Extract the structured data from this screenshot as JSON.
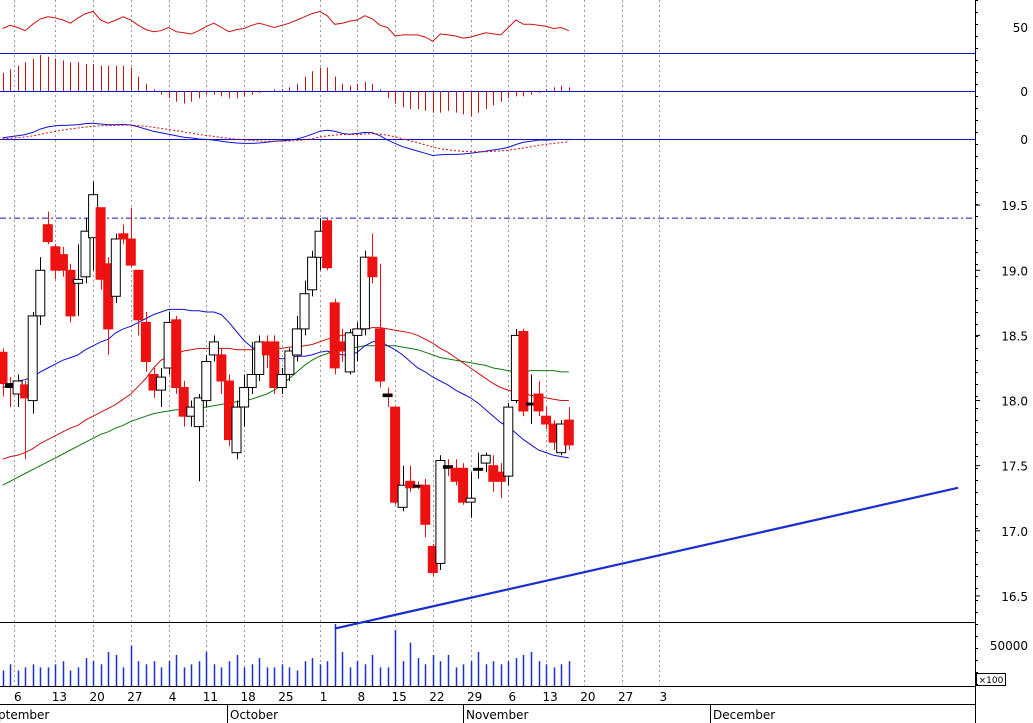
{
  "chart_data": {
    "type": "candlestick",
    "colors": {
      "up": "#ffffff",
      "down": "#ee1111",
      "ma_fast": "#1111cc",
      "ma_mid": "#cc1111",
      "ma_slow": "#117711",
      "trend": "#1a2fcc",
      "volume": "#1a2fcc",
      "rsi": "#cc1111",
      "macd_hist": "#cc1111",
      "grid": "#999999",
      "frame": "#000000"
    },
    "price_axis": {
      "ticks": [
        "19.5",
        "19.0",
        "18.5",
        "18.0",
        "17.5",
        "17.0",
        "16.5"
      ],
      "range": [
        16.3,
        20.0
      ]
    },
    "indicator_labels": {
      "rsi": "50",
      "macd_hist": "0",
      "macd": "0"
    },
    "volume_axis": {
      "tick": "50000",
      "unit": "×100"
    },
    "x_tick_labels": [
      "6",
      "13",
      "20",
      "27",
      "4",
      "11",
      "18",
      "25",
      "1",
      "8",
      "15",
      "22",
      "29",
      "6",
      "13",
      "20",
      "27",
      "3"
    ],
    "month_labels": [
      "ptember",
      "October",
      "November",
      "December"
    ],
    "resistance_line": 19.4,
    "trend_line": {
      "start": {
        "date": "Nov 5",
        "value": 16.25
      },
      "end": {
        "date": "Dec 27",
        "value": 17.33
      }
    },
    "candles": [
      {
        "date": "Sep 4",
        "open": 18.37,
        "high": 18.4,
        "low": 18.03,
        "close": 18.13
      },
      {
        "date": "Sep 5",
        "open": 18.13,
        "high": 18.18,
        "low": 17.95,
        "close": 18.1
      },
      {
        "date": "Sep 6",
        "open": 18.05,
        "high": 18.2,
        "low": 17.95,
        "close": 18.15
      },
      {
        "date": "Sep 9",
        "open": 18.12,
        "high": 18.15,
        "low": 17.55,
        "close": 18.02
      },
      {
        "date": "Sep 10",
        "open": 18.0,
        "high": 18.68,
        "low": 17.9,
        "close": 18.65
      },
      {
        "date": "Sep 11",
        "open": 18.65,
        "high": 19.1,
        "low": 18.58,
        "close": 19.0
      },
      {
        "date": "Sep 12",
        "open": 19.35,
        "high": 19.45,
        "low": 19.2,
        "close": 19.22
      },
      {
        "date": "Sep 13",
        "open": 19.18,
        "high": 19.2,
        "low": 18.93,
        "close": 19.0
      },
      {
        "date": "Sep 16",
        "open": 19.12,
        "high": 19.18,
        "low": 18.95,
        "close": 19.0
      },
      {
        "date": "Sep 17",
        "open": 19.0,
        "high": 19.05,
        "low": 18.6,
        "close": 18.65
      },
      {
        "date": "Sep 18",
        "open": 18.9,
        "high": 19.2,
        "low": 18.65,
        "close": 18.93
      },
      {
        "date": "Sep 19",
        "open": 18.95,
        "high": 19.4,
        "low": 18.9,
        "close": 19.3
      },
      {
        "date": "Sep 20",
        "open": 19.25,
        "high": 19.68,
        "low": 19.0,
        "close": 19.58
      },
      {
        "date": "Sep 23",
        "open": 19.48,
        "high": 19.48,
        "low": 18.85,
        "close": 18.93
      },
      {
        "date": "Sep 24",
        "open": 19.05,
        "high": 19.1,
        "low": 18.35,
        "close": 18.55
      },
      {
        "date": "Sep 25",
        "open": 18.8,
        "high": 19.28,
        "low": 18.75,
        "close": 19.24
      },
      {
        "date": "Sep 26",
        "open": 19.28,
        "high": 19.35,
        "low": 19.2,
        "close": 19.24
      },
      {
        "date": "Sep 27",
        "open": 19.24,
        "high": 19.48,
        "low": 19.02,
        "close": 19.04
      },
      {
        "date": "Sep 30",
        "open": 19.0,
        "high": 19.0,
        "low": 18.5,
        "close": 18.62
      },
      {
        "date": "Oct 1",
        "open": 18.6,
        "high": 18.68,
        "low": 18.22,
        "close": 18.3
      },
      {
        "date": "Oct 2",
        "open": 18.2,
        "high": 18.25,
        "low": 18.02,
        "close": 18.08
      },
      {
        "date": "Oct 3",
        "open": 18.08,
        "high": 18.25,
        "low": 17.95,
        "close": 18.18
      },
      {
        "date": "Oct 4",
        "open": 18.25,
        "high": 18.68,
        "low": 18.2,
        "close": 18.6
      },
      {
        "date": "Oct 7",
        "open": 18.62,
        "high": 18.65,
        "low": 18.05,
        "close": 18.1
      },
      {
        "date": "Oct 8",
        "open": 18.1,
        "high": 18.15,
        "low": 17.8,
        "close": 17.88
      },
      {
        "date": "Oct 9",
        "open": 17.88,
        "high": 18.0,
        "low": 17.8,
        "close": 17.95
      },
      {
        "date": "Oct 10",
        "open": 17.8,
        "high": 18.05,
        "low": 17.38,
        "close": 18.02
      },
      {
        "date": "Oct 11",
        "open": 18.0,
        "high": 18.35,
        "low": 17.95,
        "close": 18.3
      },
      {
        "date": "Oct 14",
        "open": 18.35,
        "high": 18.5,
        "low": 18.3,
        "close": 18.45
      },
      {
        "date": "Oct 15",
        "open": 18.35,
        "high": 18.4,
        "low": 18.05,
        "close": 18.15
      },
      {
        "date": "Oct 16",
        "open": 18.15,
        "high": 18.2,
        "low": 17.65,
        "close": 17.7
      },
      {
        "date": "Oct 17",
        "open": 17.6,
        "high": 18.0,
        "low": 17.55,
        "close": 17.95
      },
      {
        "date": "Oct 18",
        "open": 17.95,
        "high": 18.2,
        "low": 17.8,
        "close": 18.1
      },
      {
        "date": "Oct 21",
        "open": 18.1,
        "high": 18.45,
        "low": 18.05,
        "close": 18.2
      },
      {
        "date": "Oct 22",
        "open": 18.2,
        "high": 18.5,
        "low": 18.15,
        "close": 18.45
      },
      {
        "date": "Oct 23",
        "open": 18.45,
        "high": 18.5,
        "low": 18.25,
        "close": 18.35
      },
      {
        "date": "Oct 24",
        "open": 18.45,
        "high": 18.5,
        "low": 18.05,
        "close": 18.1
      },
      {
        "date": "Oct 25",
        "open": 18.1,
        "high": 18.25,
        "low": 18.05,
        "close": 18.2
      },
      {
        "date": "Oct 28",
        "open": 18.2,
        "high": 18.4,
        "low": 18.15,
        "close": 18.38
      },
      {
        "date": "Oct 29",
        "open": 18.35,
        "high": 18.65,
        "low": 18.3,
        "close": 18.55
      },
      {
        "date": "Oct 30",
        "open": 18.55,
        "high": 18.92,
        "low": 18.5,
        "close": 18.82
      },
      {
        "date": "Oct 31",
        "open": 18.85,
        "high": 19.15,
        "low": 18.8,
        "close": 19.1
      },
      {
        "date": "Nov 1",
        "open": 19.1,
        "high": 19.4,
        "low": 19.0,
        "close": 19.3
      },
      {
        "date": "Nov 4",
        "open": 19.38,
        "high": 19.4,
        "low": 19.0,
        "close": 19.02
      },
      {
        "date": "Nov 5",
        "open": 18.75,
        "high": 18.78,
        "low": 18.2,
        "close": 18.25
      },
      {
        "date": "Nov 6",
        "open": 18.45,
        "high": 18.55,
        "low": 18.3,
        "close": 18.38
      },
      {
        "date": "Nov 7",
        "open": 18.22,
        "high": 18.55,
        "low": 18.2,
        "close": 18.52
      },
      {
        "date": "Nov 8",
        "open": 18.5,
        "high": 18.6,
        "low": 18.3,
        "close": 18.55
      },
      {
        "date": "Nov 11",
        "open": 18.55,
        "high": 19.15,
        "low": 18.5,
        "close": 19.1
      },
      {
        "date": "Nov 12",
        "open": 19.1,
        "high": 19.28,
        "low": 18.9,
        "close": 18.95
      },
      {
        "date": "Nov 13",
        "open": 18.55,
        "high": 19.05,
        "low": 18.1,
        "close": 18.15
      },
      {
        "date": "Nov 14",
        "open": 18.05,
        "high": 18.1,
        "low": 17.95,
        "close": 18.03
      },
      {
        "date": "Nov 15",
        "open": 17.95,
        "high": 17.95,
        "low": 17.2,
        "close": 17.22
      },
      {
        "date": "Nov 18",
        "open": 17.18,
        "high": 17.5,
        "low": 17.15,
        "close": 17.35
      },
      {
        "date": "Nov 19",
        "open": 17.38,
        "high": 17.5,
        "low": 17.3,
        "close": 17.33
      },
      {
        "date": "Nov 20",
        "open": 17.35,
        "high": 17.38,
        "low": 17.32,
        "close": 17.34
      },
      {
        "date": "Nov 21",
        "open": 17.35,
        "high": 17.4,
        "low": 16.95,
        "close": 17.05
      },
      {
        "date": "Nov 22",
        "open": 16.88,
        "high": 16.9,
        "low": 16.65,
        "close": 16.68
      },
      {
        "date": "Nov 25",
        "open": 16.75,
        "high": 17.58,
        "low": 16.7,
        "close": 17.54
      },
      {
        "date": "Nov 26",
        "open": 17.5,
        "high": 17.55,
        "low": 17.42,
        "close": 17.48
      },
      {
        "date": "Nov 27",
        "open": 17.48,
        "high": 17.55,
        "low": 17.35,
        "close": 17.38
      },
      {
        "date": "Nov 28",
        "open": 17.48,
        "high": 17.52,
        "low": 17.2,
        "close": 17.22
      },
      {
        "date": "Nov 29",
        "open": 17.22,
        "high": 17.45,
        "low": 17.1,
        "close": 17.25
      },
      {
        "date": "Dec 2",
        "open": 17.48,
        "high": 17.6,
        "low": 17.4,
        "close": 17.48
      },
      {
        "date": "Dec 3",
        "open": 17.52,
        "high": 17.6,
        "low": 17.45,
        "close": 17.58
      },
      {
        "date": "Dec 4",
        "open": 17.5,
        "high": 17.58,
        "low": 17.3,
        "close": 17.38
      },
      {
        "date": "Dec 5",
        "open": 17.45,
        "high": 17.52,
        "low": 17.25,
        "close": 17.38
      },
      {
        "date": "Dec 6",
        "open": 17.42,
        "high": 17.98,
        "low": 17.35,
        "close": 17.95
      },
      {
        "date": "Dec 9",
        "open": 18.0,
        "high": 18.55,
        "low": 17.98,
        "close": 18.5
      },
      {
        "date": "Dec 10",
        "open": 18.53,
        "high": 18.55,
        "low": 17.88,
        "close": 17.92
      },
      {
        "date": "Dec 11",
        "open": 17.98,
        "high": 18.2,
        "low": 17.82,
        "close": 17.98
      },
      {
        "date": "Dec 12",
        "open": 18.05,
        "high": 18.15,
        "low": 17.88,
        "close": 17.92
      },
      {
        "date": "Dec 13",
        "open": 17.88,
        "high": 17.95,
        "low": 17.78,
        "close": 17.82
      },
      {
        "date": "Dec 16",
        "open": 17.82,
        "high": 17.85,
        "low": 17.62,
        "close": 17.68
      },
      {
        "date": "Dec 17",
        "open": 17.6,
        "high": 17.85,
        "low": 17.58,
        "close": 17.82
      },
      {
        "date": "Dec 18",
        "open": 17.85,
        "high": 17.95,
        "low": 17.62,
        "close": 17.66
      }
    ],
    "ma_fast": [
      18.1,
      18.12,
      18.15,
      18.16,
      18.18,
      18.22,
      18.25,
      18.28,
      18.31,
      18.33,
      18.35,
      18.39,
      18.42,
      18.45,
      18.47,
      18.52,
      18.55,
      18.57,
      18.6,
      18.63,
      18.66,
      18.68,
      18.7,
      18.7,
      18.7,
      18.69,
      18.69,
      18.68,
      18.68,
      18.66,
      18.6,
      18.53,
      18.46,
      18.41,
      18.38,
      18.36,
      18.33,
      18.32,
      18.33,
      18.34,
      18.34,
      18.35,
      18.37,
      18.38,
      18.36,
      18.35,
      18.35,
      18.37,
      18.42,
      18.45,
      18.46,
      18.42,
      18.39,
      18.35,
      18.3,
      18.25,
      18.22,
      18.18,
      18.15,
      18.12,
      18.08,
      18.05,
      18.02,
      17.98,
      17.93,
      17.88,
      17.83,
      17.8,
      17.75,
      17.7,
      17.66,
      17.62,
      17.6,
      17.58,
      17.57,
      17.56
    ],
    "ma_mid": [
      17.55,
      17.57,
      17.58,
      17.6,
      17.63,
      17.67,
      17.7,
      17.73,
      17.76,
      17.79,
      17.81,
      17.85,
      17.88,
      17.91,
      17.94,
      17.97,
      18.01,
      18.05,
      18.11,
      18.17,
      18.25,
      18.31,
      18.34,
      18.36,
      18.38,
      18.39,
      18.4,
      18.4,
      18.4,
      18.4,
      18.4,
      18.39,
      18.39,
      18.39,
      18.4,
      18.4,
      18.4,
      18.4,
      18.41,
      18.41,
      18.42,
      18.43,
      18.45,
      18.47,
      18.49,
      18.5,
      18.51,
      18.53,
      18.55,
      18.56,
      18.56,
      18.55,
      18.54,
      18.53,
      18.52,
      18.5,
      18.47,
      18.44,
      18.4,
      18.37,
      18.33,
      18.29,
      18.25,
      18.21,
      18.17,
      18.13,
      18.1,
      18.08,
      18.06,
      18.05,
      18.04,
      18.03,
      18.02,
      18.01,
      18.0,
      18.0
    ],
    "ma_slow": [
      17.35,
      17.38,
      17.41,
      17.44,
      17.47,
      17.5,
      17.53,
      17.56,
      17.59,
      17.62,
      17.65,
      17.68,
      17.71,
      17.74,
      17.76,
      17.79,
      17.81,
      17.84,
      17.86,
      17.88,
      17.9,
      17.91,
      17.92,
      17.93,
      17.93,
      17.94,
      17.94,
      17.95,
      17.96,
      17.97,
      17.98,
      17.99,
      18.0,
      18.01,
      18.03,
      18.05,
      18.08,
      18.12,
      18.17,
      18.22,
      18.27,
      18.31,
      18.34,
      18.36,
      18.38,
      18.39,
      18.4,
      18.41,
      18.42,
      18.42,
      18.42,
      18.42,
      18.42,
      18.41,
      18.4,
      18.39,
      18.37,
      18.35,
      18.33,
      18.32,
      18.31,
      18.3,
      18.29,
      18.28,
      18.27,
      18.25,
      18.24,
      18.23,
      18.22,
      18.22,
      18.23,
      18.23,
      18.23,
      18.23,
      18.22,
      18.22
    ],
    "volume": [
      0.25,
      0.35,
      0.25,
      0.3,
      0.35,
      0.3,
      0.3,
      0.35,
      0.4,
      0.25,
      0.3,
      0.45,
      0.4,
      0.35,
      0.55,
      0.5,
      0.3,
      0.65,
      0.4,
      0.35,
      0.4,
      0.3,
      0.4,
      0.5,
      0.3,
      0.35,
      0.4,
      0.55,
      0.35,
      0.3,
      0.4,
      0.5,
      0.3,
      0.35,
      0.45,
      0.3,
      0.3,
      0.35,
      0.3,
      0.25,
      0.4,
      0.45,
      0.35,
      0.4,
      1.0,
      0.55,
      0.3,
      0.4,
      0.35,
      0.5,
      0.3,
      0.3,
      0.9,
      0.4,
      0.7,
      0.45,
      0.35,
      0.5,
      0.4,
      0.5,
      0.3,
      0.35,
      0.4,
      0.55,
      0.35,
      0.4,
      0.35,
      0.4,
      0.45,
      0.5,
      0.55,
      0.4,
      0.35,
      0.3,
      0.35,
      0.4
    ],
    "rsi": [
      52,
      55,
      53,
      50,
      56,
      61,
      63,
      62,
      60,
      57,
      62,
      66,
      68,
      60,
      57,
      60,
      63,
      60,
      55,
      51,
      49,
      50,
      53,
      49,
      48,
      47,
      50,
      54,
      57,
      53,
      49,
      51,
      52,
      55,
      57,
      55,
      53,
      55,
      57,
      60,
      63,
      66,
      68,
      64,
      56,
      57,
      59,
      60,
      64,
      61,
      55,
      53,
      45,
      46,
      46,
      46,
      44,
      40,
      47,
      46,
      45,
      43,
      44,
      46,
      48,
      47,
      46,
      53,
      60,
      56,
      56,
      55,
      54,
      52,
      53,
      50
    ],
    "macd_hist": [
      0.5,
      0.6,
      0.7,
      0.8,
      0.9,
      1.0,
      0.95,
      0.9,
      0.85,
      0.8,
      0.8,
      0.75,
      0.75,
      0.7,
      0.7,
      0.7,
      0.7,
      0.65,
      0.4,
      0.2,
      0.05,
      -0.1,
      -0.2,
      -0.3,
      -0.35,
      -0.3,
      -0.2,
      -0.1,
      -0.1,
      -0.15,
      -0.2,
      -0.2,
      -0.15,
      -0.1,
      -0.05,
      0,
      0.05,
      0.05,
      0.1,
      0.2,
      0.4,
      0.55,
      0.65,
      0.65,
      0.4,
      0.2,
      0.15,
      0.2,
      0.25,
      0.2,
      0.05,
      -0.2,
      -0.35,
      -0.45,
      -0.5,
      -0.5,
      -0.55,
      -0.6,
      -0.6,
      -0.55,
      -0.6,
      -0.65,
      -0.7,
      -0.6,
      -0.5,
      -0.4,
      -0.3,
      -0.2,
      -0.15,
      -0.15,
      -0.1,
      -0.05,
      0.05,
      0.1,
      0.15,
      0.1
    ],
    "macd_line": [
      0.05,
      0.1,
      0.15,
      0.2,
      0.3,
      0.45,
      0.55,
      0.6,
      0.62,
      0.63,
      0.65,
      0.7,
      0.72,
      0.68,
      0.65,
      0.65,
      0.66,
      0.64,
      0.55,
      0.45,
      0.35,
      0.28,
      0.22,
      0.15,
      0.08,
      0.05,
      0.0,
      -0.02,
      -0.05,
      -0.1,
      -0.15,
      -0.18,
      -0.2,
      -0.2,
      -0.18,
      -0.15,
      -0.1,
      -0.08,
      -0.05,
      0.0,
      0.1,
      0.22,
      0.35,
      0.4,
      0.35,
      0.25,
      0.22,
      0.25,
      0.3,
      0.28,
      0.15,
      -0.05,
      -0.2,
      -0.35,
      -0.45,
      -0.55,
      -0.65,
      -0.75,
      -0.72,
      -0.7,
      -0.7,
      -0.68,
      -0.65,
      -0.6,
      -0.55,
      -0.5,
      -0.45,
      -0.38,
      -0.25,
      -0.15,
      -0.1,
      -0.05,
      -0.05,
      -0.03,
      -0.02,
      -0.03
    ],
    "macd_signal": [
      0.0,
      0.03,
      0.06,
      0.09,
      0.14,
      0.21,
      0.28,
      0.35,
      0.41,
      0.46,
      0.5,
      0.54,
      0.58,
      0.6,
      0.61,
      0.62,
      0.63,
      0.63,
      0.61,
      0.58,
      0.53,
      0.48,
      0.43,
      0.38,
      0.32,
      0.27,
      0.21,
      0.16,
      0.12,
      0.07,
      0.03,
      -0.01,
      -0.04,
      -0.07,
      -0.09,
      -0.1,
      -0.1,
      -0.1,
      -0.09,
      -0.07,
      -0.04,
      0.01,
      0.08,
      0.14,
      0.18,
      0.2,
      0.2,
      0.21,
      0.23,
      0.24,
      0.22,
      0.17,
      0.1,
      0.01,
      -0.08,
      -0.17,
      -0.27,
      -0.37,
      -0.44,
      -0.49,
      -0.53,
      -0.56,
      -0.58,
      -0.58,
      -0.58,
      -0.56,
      -0.54,
      -0.51,
      -0.46,
      -0.41,
      -0.35,
      -0.29,
      -0.24,
      -0.2,
      -0.16,
      -0.13
    ]
  }
}
